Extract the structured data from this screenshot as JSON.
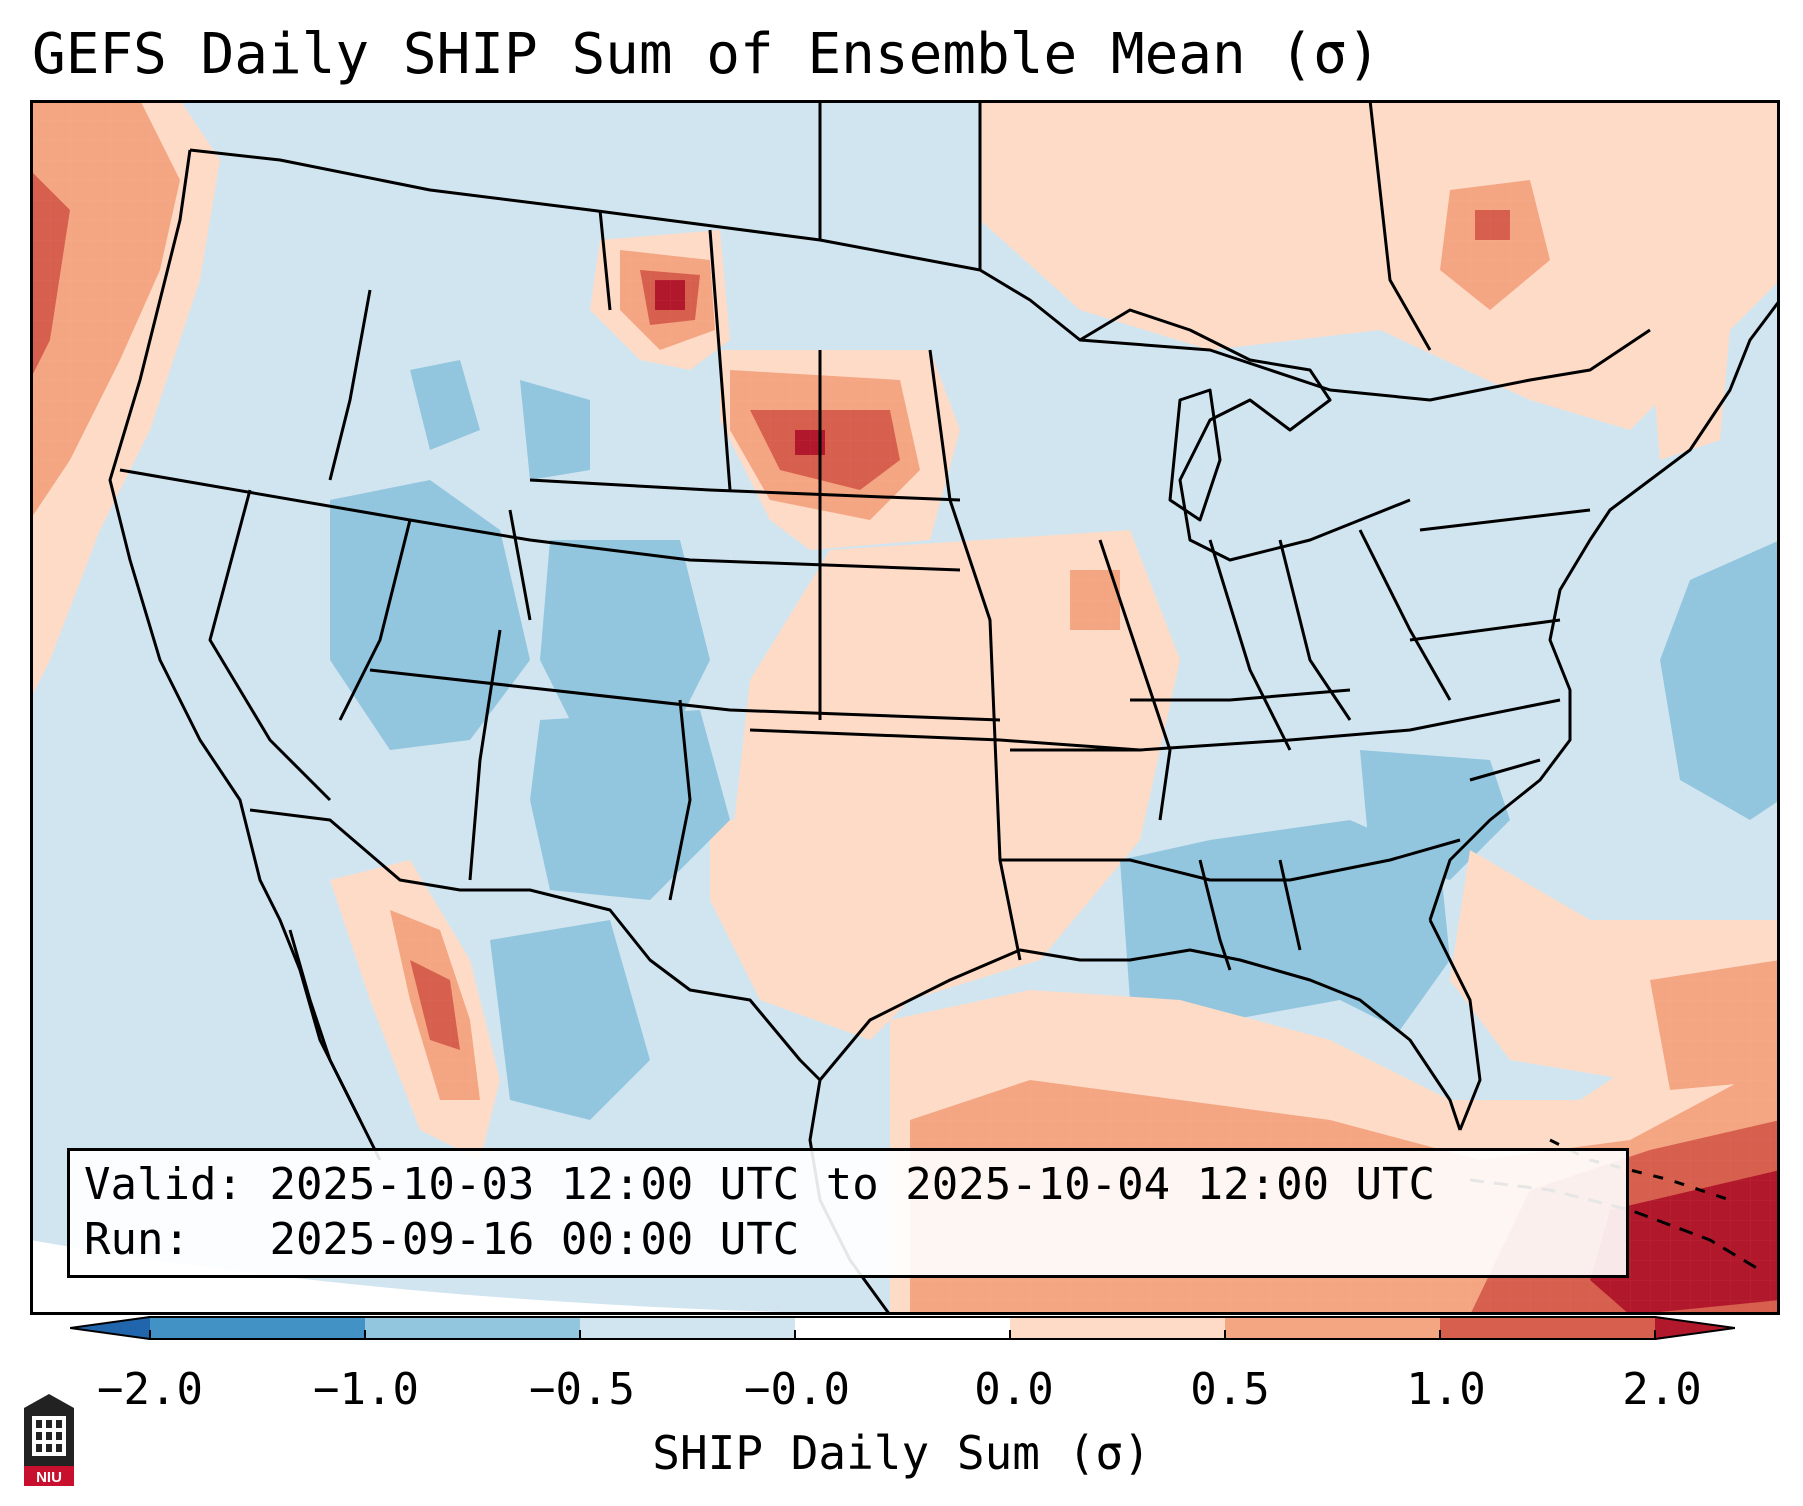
{
  "title": "GEFS Daily SHIP Sum of Ensemble Mean (σ)",
  "info": {
    "valid_label": "Valid:",
    "valid_value": "2025-10-03 12:00 UTC to 2025-10-04 12:00 UTC",
    "run_label": "Run:",
    "run_value": "2025-09-16 00:00 UTC"
  },
  "colorbar": {
    "label": "SHIP Daily Sum (σ)",
    "ticks": [
      "−2.0",
      "−1.0",
      "−0.5",
      "−0.0",
      "0.0",
      "0.5",
      "1.0",
      "2.0"
    ],
    "colors": [
      "#4392c6",
      "#92c5de",
      "#d1e5f0",
      "#ffffff",
      "#fddbc7",
      "#f4a582",
      "#d6604d",
      "#b2182b"
    ],
    "under_color": "#2166ac",
    "over_color": "#b2182b"
  },
  "map": {
    "background_color": "#d1e5f0",
    "regions": [
      {
        "name": "Pacific Northwest coast",
        "level": "0.5 to 1.0",
        "color": "#f4a582"
      },
      {
        "name": "Montana",
        "level": "1.0 to 2.0",
        "color": "#d6604d"
      },
      {
        "name": "South Dakota",
        "level": "1.0 to 2.0",
        "color": "#d6604d"
      },
      {
        "name": "Gulf of Mexico",
        "level": "0.5 to 1.0",
        "color": "#f4a582"
      },
      {
        "name": "Caribbean",
        "level": "2.0+",
        "color": "#b2182b"
      },
      {
        "name": "Intermountain West",
        "level": "-1.0 to -0.5",
        "color": "#92c5de"
      },
      {
        "name": "Southeast US",
        "level": "-1.0 to -0.5",
        "color": "#92c5de"
      },
      {
        "name": "Texas and Plains",
        "level": "0.0 to 0.5",
        "color": "#fddbc7"
      }
    ]
  },
  "logo": {
    "text": "NIU"
  }
}
